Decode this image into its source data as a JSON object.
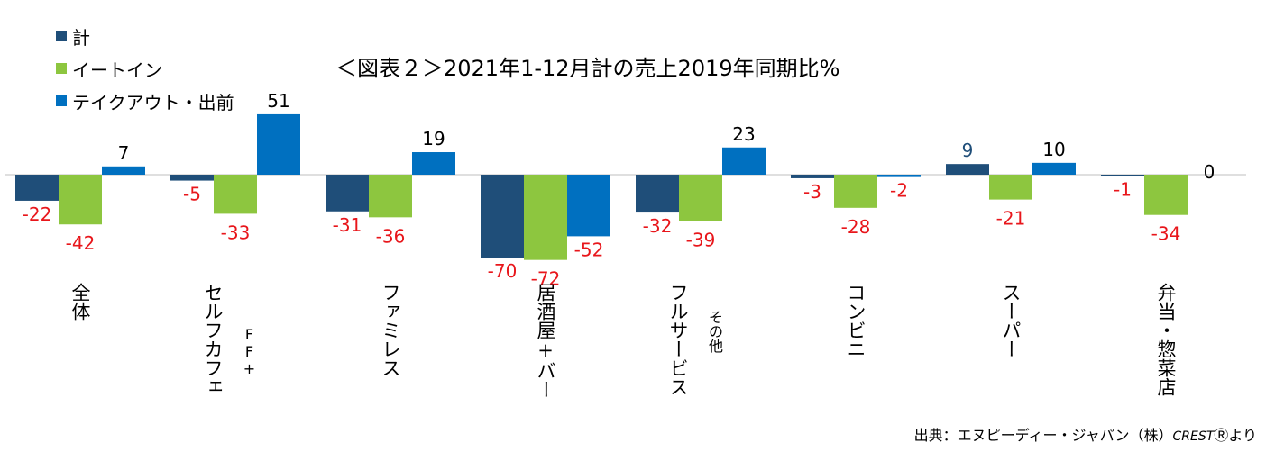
{
  "chart_data": {
    "type": "bar",
    "title": "＜図表２＞2021年1-12月計の売上2019年同期比%",
    "categories": [
      "全体",
      "セルフカフェ",
      "ファミレス",
      "居酒屋+バー",
      "フルサービス",
      "コンビニ",
      "スーパー",
      "弁当・惣菜店"
    ],
    "category_sublabels": [
      "",
      "FF+",
      "",
      "",
      "その他",
      "",
      "",
      ""
    ],
    "series": [
      {
        "name": "計",
        "color": "#1F4E79",
        "values": [
          -22,
          -5,
          -31,
          -70,
          -32,
          -3,
          9,
          -1
        ]
      },
      {
        "name": "イートイン",
        "color": "#8DC63F",
        "values": [
          -42,
          -33,
          -36,
          -72,
          -39,
          -28,
          -21,
          -34
        ]
      },
      {
        "name": "テイクアウト・出前",
        "color": "#0070C0",
        "values": [
          7,
          51,
          19,
          -52,
          23,
          -2,
          10,
          0
        ]
      }
    ],
    "legend_position": "top-left",
    "grid": false,
    "ylim": [
      -75,
      55
    ],
    "label_colors": {
      "negative": "#E8161B",
      "positive": "#000000",
      "total_positive": "#1F4E79"
    }
  },
  "legend": {
    "items": [
      {
        "label": "計",
        "color": "#1F4E79"
      },
      {
        "label": "イートイン",
        "color": "#8DC63F"
      },
      {
        "label": "テイクアウト・出前",
        "color": "#0070C0"
      }
    ]
  },
  "source": {
    "text": "出典：エヌピーディー・ジャパン（株）",
    "brand": "CREST",
    "mark": "Ⓡ",
    "suffix": "より"
  }
}
